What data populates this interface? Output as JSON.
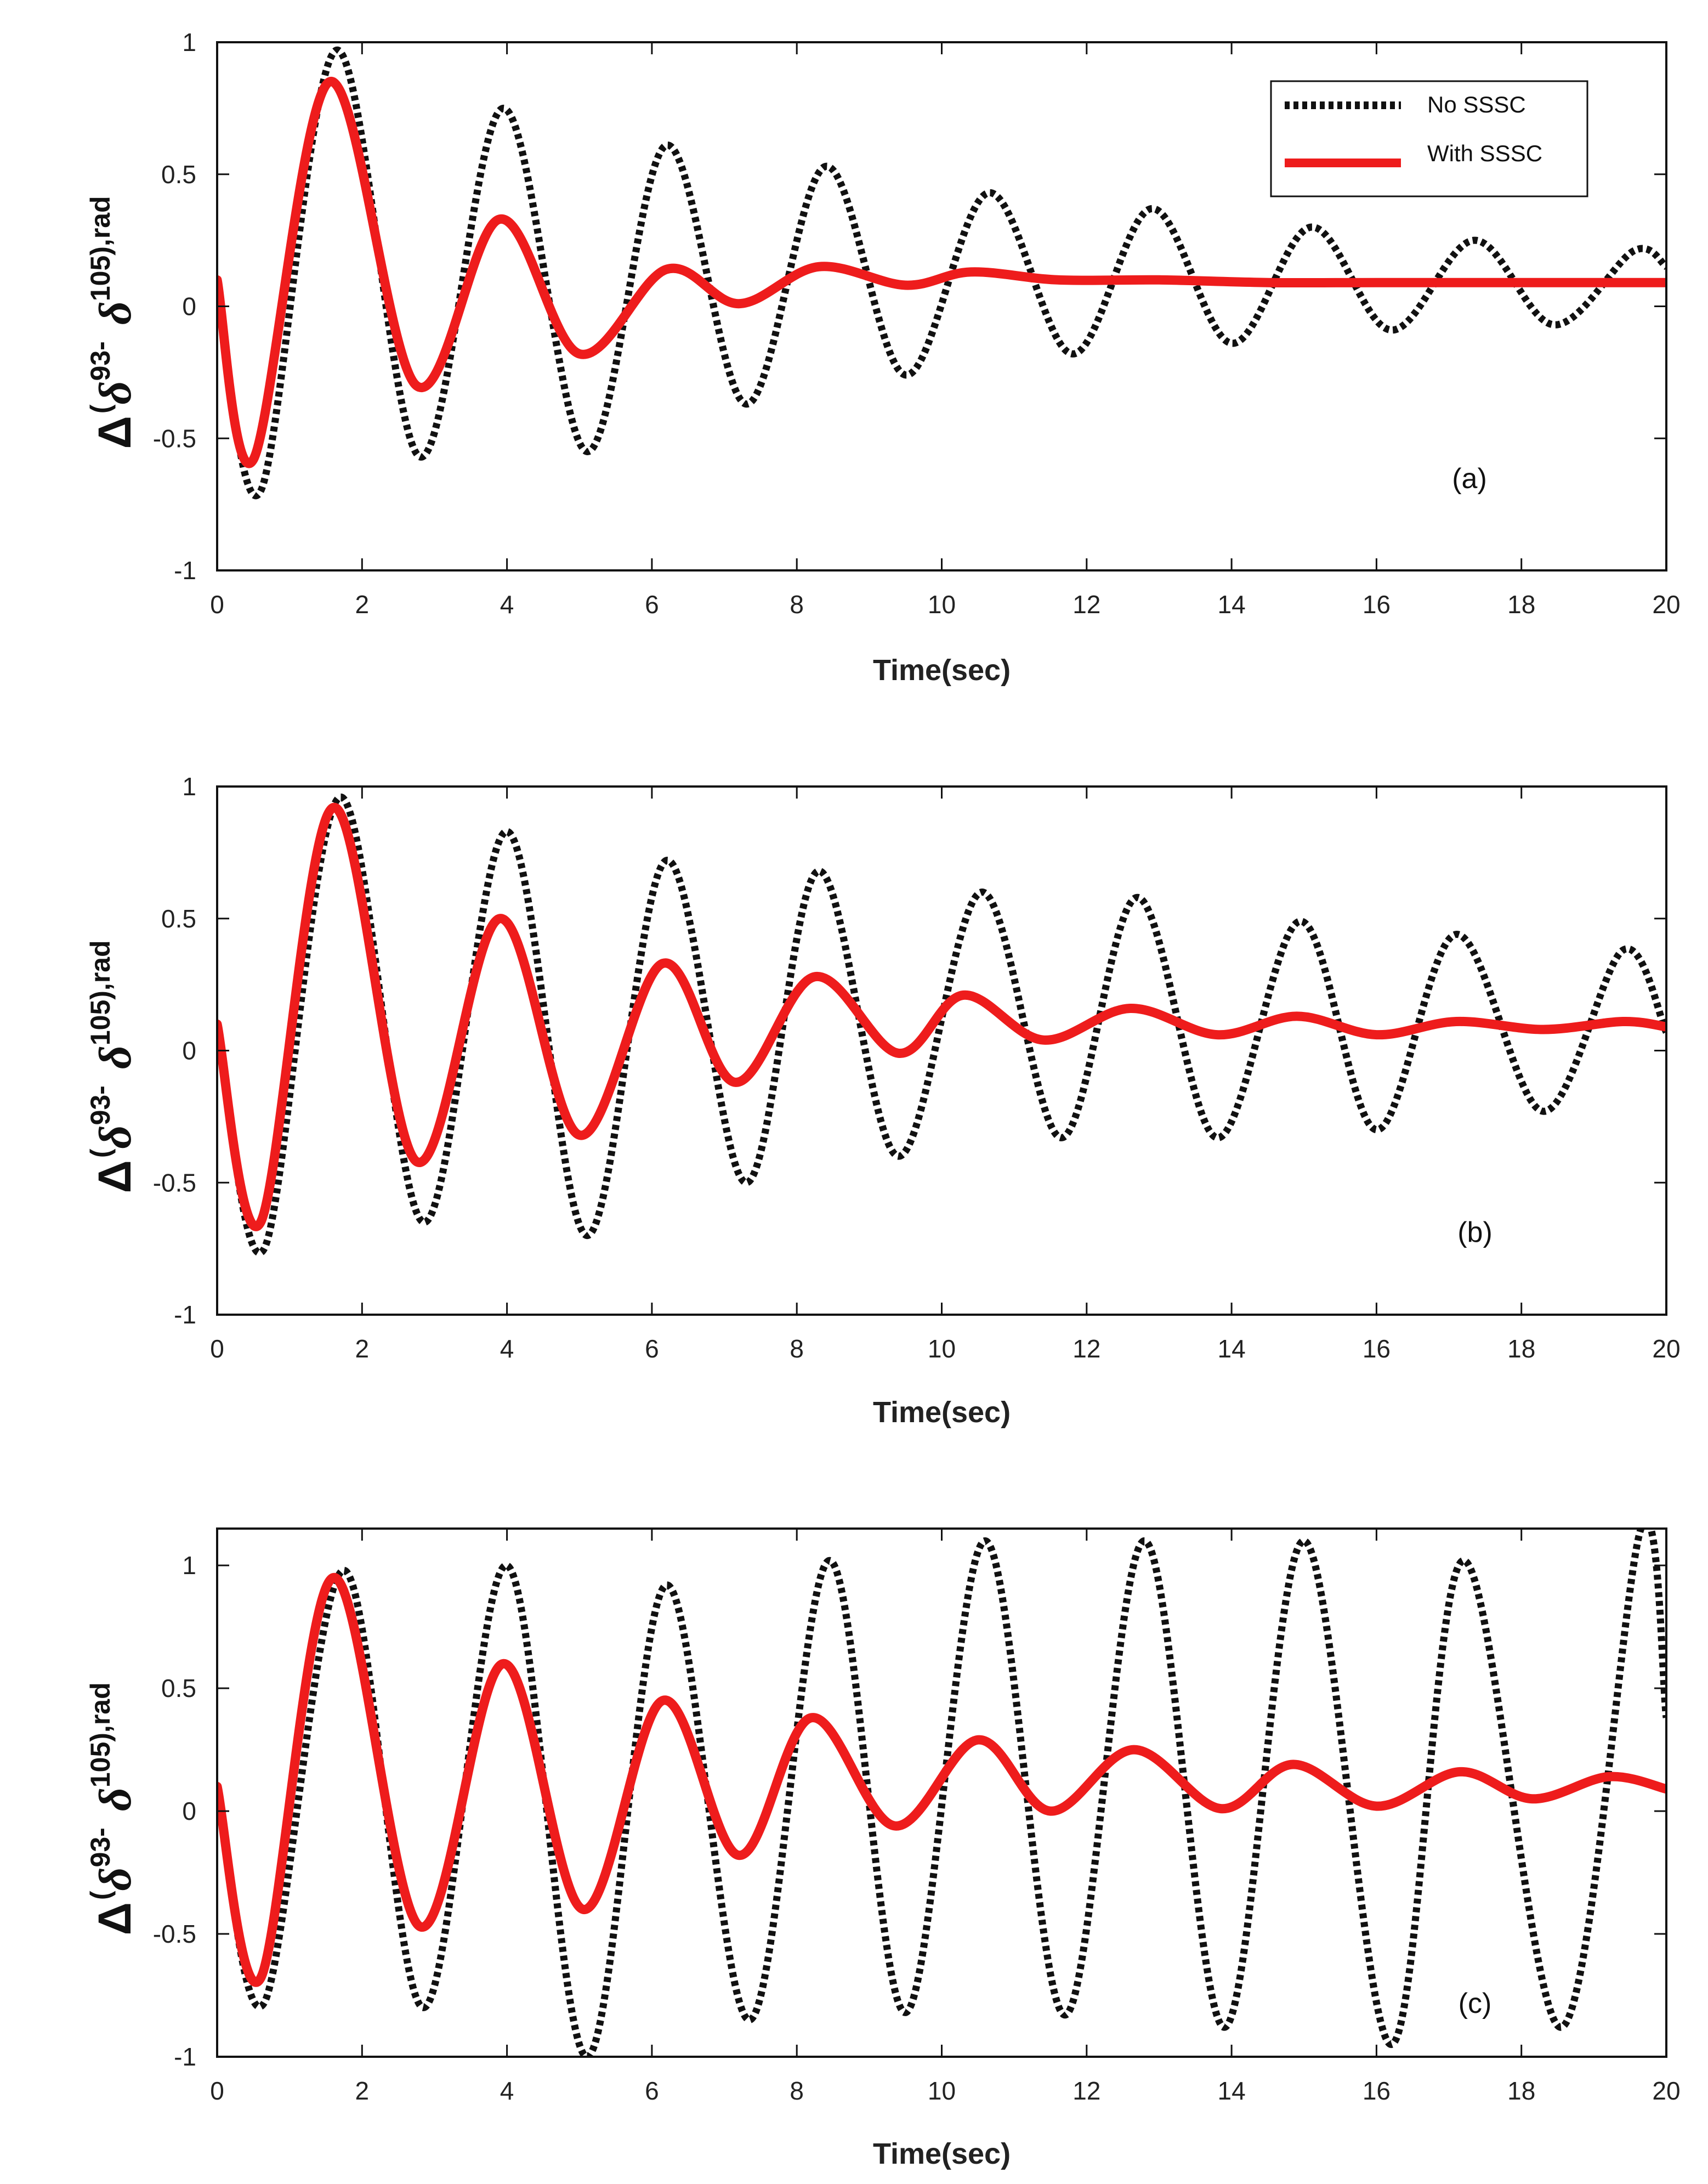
{
  "chart_data": [
    {
      "type": "line",
      "panel_label": "(a)",
      "xlabel": "Time(sec)",
      "ylabel": {
        "delta": "Δ",
        "open": "(",
        "sym": "δ",
        "sub1": "93-",
        "sub2": "105),rad"
      },
      "xlim": [
        0,
        20
      ],
      "ylim": [
        -1,
        1
      ],
      "xticks": [
        0,
        2,
        4,
        6,
        8,
        10,
        12,
        14,
        16,
        18,
        20
      ],
      "yticks": [
        -1,
        -0.5,
        0,
        0.5,
        1
      ],
      "ytick_labels": [
        "-1",
        "-0.5",
        "0",
        "0.5",
        "1"
      ],
      "legend": {
        "location": "top-right",
        "entries": [
          "No SSSC",
          "With SSSC"
        ]
      },
      "series": [
        {
          "name": "No SSSC",
          "color": "#111111",
          "style": "dotted",
          "x": [
            0,
            0.6,
            1.65,
            2.8,
            3.95,
            5.1,
            6.2,
            7.3,
            8.4,
            9.5,
            10.65,
            11.8,
            12.9,
            14.0,
            15.1,
            16.2,
            17.35,
            18.45,
            19.55,
            20
          ],
          "y": [
            0.1,
            -0.7,
            0.97,
            -0.57,
            0.75,
            -0.55,
            0.61,
            -0.37,
            0.53,
            -0.26,
            0.43,
            -0.18,
            0.37,
            -0.14,
            0.3,
            -0.09,
            0.25,
            -0.07,
            0.21,
            0.15
          ]
        },
        {
          "name": "With SSSC",
          "color": "#ee1c1c",
          "style": "solid",
          "x": [
            0,
            0.5,
            1.55,
            2.75,
            3.9,
            5.0,
            6.2,
            7.2,
            8.3,
            9.5,
            10.4,
            11.6,
            13.0,
            14.5,
            16.0,
            18.0,
            20
          ],
          "y": [
            0.1,
            -0.58,
            0.85,
            -0.3,
            0.33,
            -0.18,
            0.14,
            0.01,
            0.15,
            0.08,
            0.13,
            0.1,
            0.1,
            0.09,
            0.09,
            0.09,
            0.09
          ]
        }
      ]
    },
    {
      "type": "line",
      "panel_label": "(b)",
      "xlabel": "Time(sec)",
      "ylabel": {
        "delta": "Δ",
        "open": "(",
        "sym": "δ",
        "sub1": "93-",
        "sub2": "105),rad"
      },
      "xlim": [
        0,
        20
      ],
      "ylim": [
        -1,
        1
      ],
      "xticks": [
        0,
        2,
        4,
        6,
        8,
        10,
        12,
        14,
        16,
        18,
        20
      ],
      "yticks": [
        -1,
        -0.5,
        0,
        0.5,
        1
      ],
      "ytick_labels": [
        "-1",
        "-0.5",
        "0",
        "0.5",
        "1"
      ],
      "series": [
        {
          "name": "No SSSC",
          "color": "#111111",
          "style": "dotted",
          "x": [
            0,
            0.65,
            1.7,
            2.85,
            4.0,
            5.1,
            6.2,
            7.3,
            8.3,
            9.4,
            10.55,
            11.65,
            12.7,
            13.8,
            14.95,
            16.0,
            17.1,
            18.3,
            19.4,
            20
          ],
          "y": [
            0.1,
            -0.75,
            0.96,
            -0.65,
            0.83,
            -0.7,
            0.72,
            -0.5,
            0.68,
            -0.4,
            0.6,
            -0.33,
            0.58,
            -0.33,
            0.49,
            -0.3,
            0.44,
            -0.23,
            0.38,
            0.07
          ]
        },
        {
          "name": "With SSSC",
          "color": "#ee1c1c",
          "style": "solid",
          "x": [
            0,
            0.6,
            1.6,
            2.75,
            3.9,
            5.0,
            6.15,
            7.15,
            8.25,
            9.4,
            10.3,
            11.4,
            12.6,
            13.8,
            14.9,
            16.0,
            17.1,
            18.3,
            19.4,
            20
          ],
          "y": [
            0.1,
            -0.65,
            0.92,
            -0.42,
            0.5,
            -0.32,
            0.33,
            -0.12,
            0.28,
            -0.01,
            0.21,
            0.04,
            0.16,
            0.06,
            0.13,
            0.06,
            0.11,
            0.08,
            0.11,
            0.09
          ]
        }
      ]
    },
    {
      "type": "line",
      "panel_label": "(c)",
      "xlabel": "Time(sec)",
      "ylabel": {
        "delta": "Δ",
        "open": "(",
        "sym": "δ",
        "sub1": "93-",
        "sub2": "105),rad"
      },
      "xlim": [
        0,
        20
      ],
      "ylim": [
        -1,
        1.15
      ],
      "xticks": [
        0,
        2,
        4,
        6,
        8,
        10,
        12,
        14,
        16,
        18,
        20
      ],
      "yticks": [
        -1,
        -0.5,
        0,
        0.5,
        1
      ],
      "ytick_labels": [
        "-1",
        "-0.5",
        "0",
        "0.5",
        "1"
      ],
      "series": [
        {
          "name": "No SSSC",
          "color": "#111111",
          "style": "dotted",
          "x": [
            0,
            0.65,
            1.75,
            2.85,
            4.0,
            5.1,
            6.2,
            7.35,
            8.45,
            9.5,
            10.6,
            11.7,
            12.8,
            13.9,
            15.0,
            16.2,
            17.2,
            18.55,
            19.65,
            20
          ],
          "y": [
            0.1,
            -0.78,
            0.98,
            -0.8,
            1.0,
            -1.0,
            0.92,
            -0.85,
            1.02,
            -0.82,
            1.1,
            -0.83,
            1.1,
            -0.88,
            1.1,
            -0.95,
            1.02,
            -0.88,
            1.15,
            0.38
          ]
        },
        {
          "name": "With SSSC",
          "color": "#ee1c1c",
          "style": "solid",
          "x": [
            0,
            0.6,
            1.6,
            2.8,
            3.95,
            5.05,
            6.15,
            7.2,
            8.2,
            9.35,
            10.5,
            11.5,
            12.65,
            13.85,
            14.85,
            16.0,
            17.15,
            18.15,
            19.2,
            20
          ],
          "y": [
            0.1,
            -0.68,
            0.95,
            -0.47,
            0.6,
            -0.4,
            0.45,
            -0.18,
            0.38,
            -0.06,
            0.29,
            0.0,
            0.25,
            0.01,
            0.19,
            0.02,
            0.16,
            0.05,
            0.14,
            0.09
          ]
        }
      ]
    }
  ]
}
